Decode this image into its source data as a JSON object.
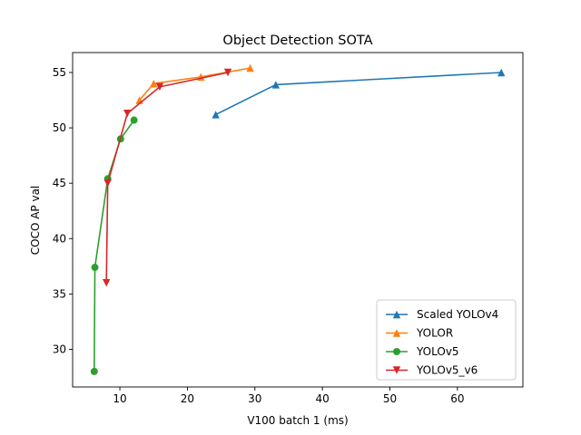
{
  "chart_data": {
    "type": "line",
    "title": "Object Detection SOTA",
    "xlabel": "V100 batch 1 (ms)",
    "ylabel": "COCO AP val",
    "xlim": [
      3.0,
      69.7
    ],
    "ylim": [
      26.6,
      56.8
    ],
    "xticks": [
      10,
      20,
      30,
      40,
      50,
      60
    ],
    "yticks": [
      30,
      35,
      40,
      45,
      50,
      55
    ],
    "legend_position": "lower right",
    "grid": false,
    "series": [
      {
        "name": "Scaled YOLOv4",
        "color": "#1f77b4",
        "marker": "triangle-up",
        "x": [
          24.2,
          33.1,
          66.5
        ],
        "y": [
          51.2,
          53.9,
          55.0
        ]
      },
      {
        "name": "YOLOR",
        "color": "#ff7f0e",
        "marker": "triangle-up",
        "x": [
          12.9,
          15.0,
          22.0,
          29.3
        ],
        "y": [
          52.5,
          54.0,
          54.6,
          55.4
        ]
      },
      {
        "name": "YOLOv5",
        "color": "#2ca02c",
        "marker": "circle",
        "x": [
          6.2,
          6.3,
          8.2,
          10.1,
          12.1
        ],
        "y": [
          28.0,
          37.4,
          45.4,
          49.0,
          50.7
        ]
      },
      {
        "name": "YOLOv5_v6",
        "color": "#d62728",
        "marker": "triangle-down",
        "x": [
          8.0,
          8.2,
          11.1,
          15.9,
          26.0
        ],
        "y": [
          36.0,
          45.0,
          51.3,
          53.7,
          55.0
        ]
      }
    ]
  }
}
